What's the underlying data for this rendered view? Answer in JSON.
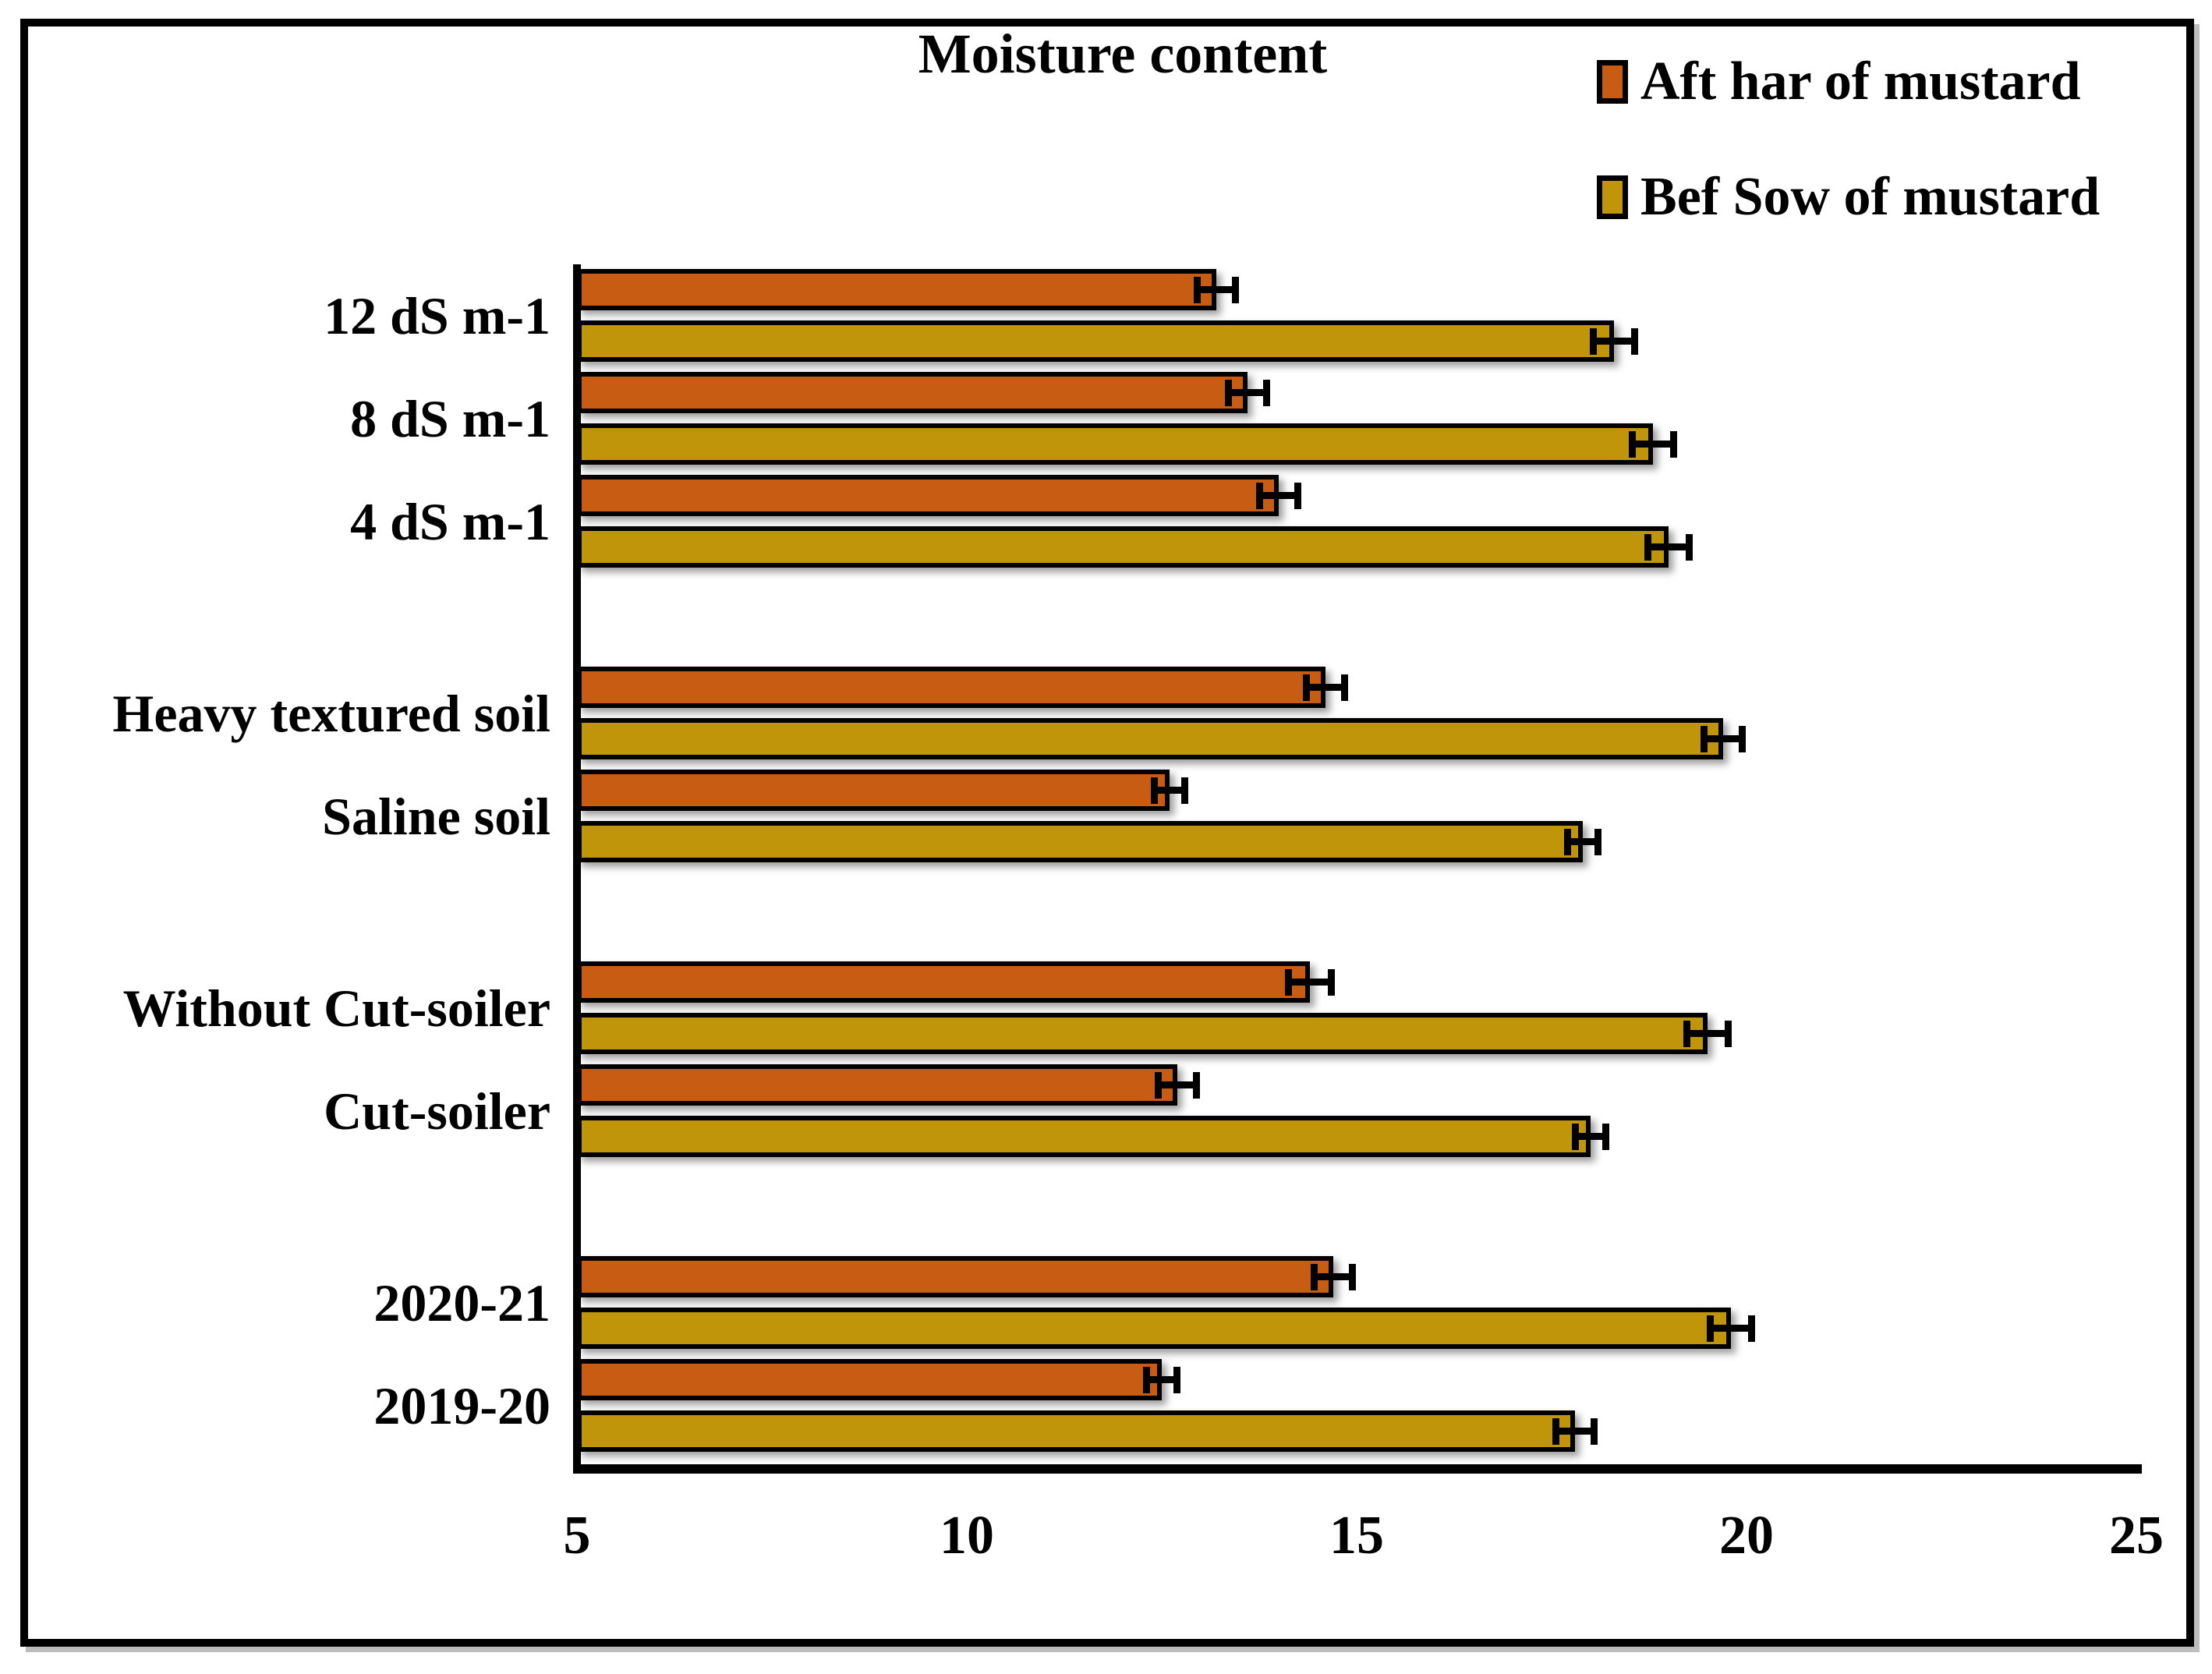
{
  "title": "Moisture content",
  "legend": {
    "items": [
      {
        "label": "Aft har of mustard",
        "color": "#C85C12"
      },
      {
        "label": "Bef Sow of mustard",
        "color": "#C1950A"
      }
    ]
  },
  "chart_data": {
    "type": "bar",
    "orientation": "horizontal",
    "title": "Moisture content",
    "xlabel": "",
    "ylabel": "",
    "xlim": [
      5,
      25
    ],
    "x_ticks": [
      5,
      10,
      15,
      20,
      25
    ],
    "grid": false,
    "legend_position": "top-right",
    "error_bars": true,
    "categories": [
      "12 dS m-1",
      "8 dS m-1",
      "4 dS m-1",
      "Heavy textured soil",
      "Saline soil",
      "Without Cut-soiler",
      "Cut-soiler",
      "2020-21",
      "2019-20"
    ],
    "group_sizes": [
      3,
      2,
      2,
      2
    ],
    "series": [
      {
        "name": "Aft har of mustard",
        "color": "#C85C12",
        "values": [
          13.2,
          13.6,
          14.0,
          14.6,
          12.6,
          14.4,
          12.7,
          14.7,
          12.5
        ],
        "errors": [
          0.25,
          0.25,
          0.25,
          0.25,
          0.2,
          0.28,
          0.25,
          0.25,
          0.2
        ]
      },
      {
        "name": "Bef Sow of mustard",
        "color": "#C1950A",
        "values": [
          18.3,
          18.8,
          19.0,
          19.7,
          17.9,
          19.5,
          18.0,
          19.8,
          17.8
        ],
        "errors": [
          0.27,
          0.27,
          0.27,
          0.25,
          0.2,
          0.27,
          0.2,
          0.27,
          0.25
        ]
      }
    ]
  }
}
